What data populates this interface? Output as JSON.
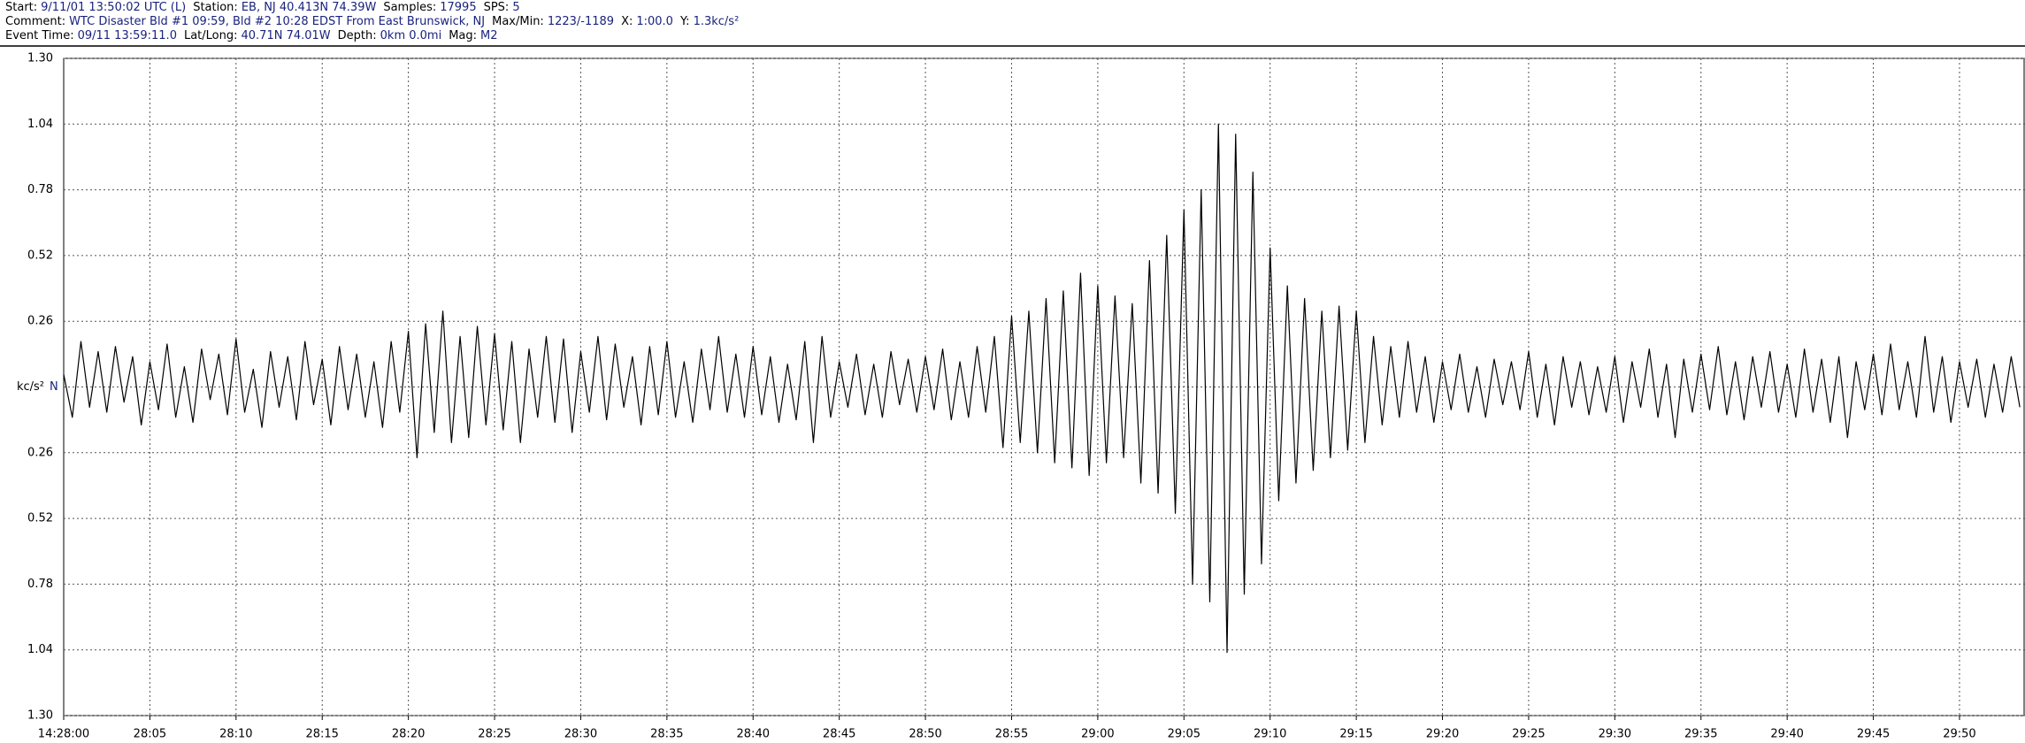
{
  "header": {
    "lines": [
      [
        {
          "label": "Start:",
          "value": "9/11/01 13:50:02 UTC (L)"
        },
        {
          "label": "Station:",
          "value": "EB, NJ 40.413N 74.39W"
        },
        {
          "label": "Samples:",
          "value": "17995"
        },
        {
          "label": "SPS:",
          "value": "5"
        }
      ],
      [
        {
          "label": "Comment:",
          "value": "WTC Disaster  Bld #1 09:59,  Bld #2 10:28  EDST From East Brunswick, NJ"
        },
        {
          "label": "Max/Min:",
          "value": "1223/-1189"
        },
        {
          "label": "X:",
          "value": "1:00.0"
        },
        {
          "label": "Y:",
          "value": "1.3kc/s²"
        }
      ],
      [
        {
          "label": "Event Time:",
          "value": "09/11 13:59:11.0"
        },
        {
          "label": "Lat/Long:",
          "value": "40.71N 74.01W"
        },
        {
          "label": "Depth:",
          "value": "0km 0.0mi"
        },
        {
          "label": "Mag:",
          "value": "M2"
        }
      ]
    ]
  },
  "chart_data": {
    "type": "line",
    "color": "#000000",
    "channel": "N",
    "grid": true,
    "xlim": [
      0,
      113.8
    ],
    "ylim": [
      -1.3,
      1.3
    ],
    "yticks": [
      {
        "value": 1.3,
        "label": "1.30"
      },
      1.04,
      0.78,
      0.52,
      0.26,
      {
        "value": 0,
        "label": "kc/s²"
      },
      {
        "value": -0.26,
        "label": "0.26"
      },
      {
        "value": -0.52,
        "label": "0.52"
      },
      {
        "value": -0.78,
        "label": "0.78"
      },
      {
        "value": -1.04,
        "label": "1.04"
      },
      {
        "value": -1.3,
        "label": "1.30"
      }
    ],
    "xticks": [
      {
        "value": 0,
        "label": "14:28:00"
      },
      {
        "value": 5,
        "label": "28:05"
      },
      {
        "value": 10,
        "label": "28:10"
      },
      {
        "value": 15,
        "label": "28:15"
      },
      {
        "value": 20,
        "label": "28:20"
      },
      {
        "value": 25,
        "label": "28:25"
      },
      {
        "value": 30,
        "label": "28:30"
      },
      {
        "value": 35,
        "label": "28:35"
      },
      {
        "value": 40,
        "label": "28:40"
      },
      {
        "value": 45,
        "label": "28:45"
      },
      {
        "value": 50,
        "label": "28:50"
      },
      {
        "value": 55,
        "label": "28:55"
      },
      {
        "value": 60,
        "label": "29:00"
      },
      {
        "value": 65,
        "label": "29:05"
      },
      {
        "value": 70,
        "label": "29:10"
      },
      {
        "value": 75,
        "label": "29:15"
      },
      {
        "value": 80,
        "label": "29:20"
      },
      {
        "value": 85,
        "label": "29:25"
      },
      {
        "value": 90,
        "label": "29:30"
      },
      {
        "value": 95,
        "label": "29:35"
      },
      {
        "value": 100,
        "label": "29:40"
      },
      {
        "value": 105,
        "label": "29:45"
      },
      {
        "value": 110,
        "label": "29:50"
      }
    ],
    "x": [
      0,
      0.5,
      1,
      1.5,
      2,
      2.5,
      3,
      3.5,
      4,
      4.5,
      5,
      5.5,
      6,
      6.5,
      7,
      7.5,
      8,
      8.5,
      9,
      9.5,
      10,
      10.5,
      11,
      11.5,
      12,
      12.5,
      13,
      13.5,
      14,
      14.5,
      15,
      15.5,
      16,
      16.5,
      17,
      17.5,
      18,
      18.5,
      19,
      19.5,
      20,
      20.5,
      21,
      21.5,
      22,
      22.5,
      23,
      23.5,
      24,
      24.5,
      25,
      25.5,
      26,
      26.5,
      27,
      27.5,
      28,
      28.5,
      29,
      29.5,
      30,
      30.5,
      31,
      31.5,
      32,
      32.5,
      33,
      33.5,
      34,
      34.5,
      35,
      35.5,
      36,
      36.5,
      37,
      37.5,
      38,
      38.5,
      39,
      39.5,
      40,
      40.5,
      41,
      41.5,
      42,
      42.5,
      43,
      43.5,
      44,
      44.5,
      45,
      45.5,
      46,
      46.5,
      47,
      47.5,
      48,
      48.5,
      49,
      49.5,
      50,
      50.5,
      51,
      51.5,
      52,
      52.5,
      53,
      53.5,
      54,
      54.5,
      55,
      55.5,
      56,
      56.5,
      57,
      57.5,
      58,
      58.5,
      59,
      59.5,
      60,
      60.5,
      61,
      61.5,
      62,
      62.5,
      63,
      63.5,
      64,
      64.5,
      65,
      65.5,
      66,
      66.5,
      67,
      67.5,
      68,
      68.5,
      69,
      69.5,
      70,
      70.5,
      71,
      71.5,
      72,
      72.5,
      73,
      73.5,
      74,
      74.5,
      75,
      75.5,
      76,
      76.5,
      77,
      77.5,
      78,
      78.5,
      79,
      79.5,
      80,
      80.5,
      81,
      81.5,
      82,
      82.5,
      83,
      83.5,
      84,
      84.5,
      85,
      85.5,
      86,
      86.5,
      87,
      87.5,
      88,
      88.5,
      89,
      89.5,
      90,
      90.5,
      91,
      91.5,
      92,
      92.5,
      93,
      93.5,
      94,
      94.5,
      95,
      95.5,
      96,
      96.5,
      97,
      97.5,
      98,
      98.5,
      99,
      99.5,
      100,
      100.5,
      101,
      101.5,
      102,
      102.5,
      103,
      103.5,
      104,
      104.5,
      105,
      105.5,
      106,
      106.5,
      107,
      107.5,
      108,
      108.5,
      109,
      109.5,
      110,
      110.5,
      111,
      111.5,
      112,
      112.5,
      113,
      113.5
    ],
    "values": [
      0.05,
      -0.12,
      0.18,
      -0.08,
      0.14,
      -0.1,
      0.16,
      -0.06,
      0.12,
      -0.15,
      0.1,
      -0.09,
      0.17,
      -0.12,
      0.08,
      -0.14,
      0.15,
      -0.05,
      0.13,
      -0.11,
      0.19,
      -0.1,
      0.07,
      -0.16,
      0.14,
      -0.08,
      0.12,
      -0.13,
      0.18,
      -0.07,
      0.11,
      -0.15,
      0.16,
      -0.09,
      0.13,
      -0.12,
      0.1,
      -0.16,
      0.18,
      -0.1,
      0.22,
      -0.28,
      0.25,
      -0.18,
      0.3,
      -0.22,
      0.2,
      -0.2,
      0.24,
      -0.15,
      0.21,
      -0.17,
      0.18,
      -0.22,
      0.15,
      -0.12,
      0.2,
      -0.14,
      0.19,
      -0.18,
      0.14,
      -0.1,
      0.2,
      -0.13,
      0.17,
      -0.08,
      0.12,
      -0.15,
      0.16,
      -0.11,
      0.18,
      -0.12,
      0.1,
      -0.14,
      0.15,
      -0.09,
      0.2,
      -0.1,
      0.13,
      -0.12,
      0.16,
      -0.11,
      0.12,
      -0.14,
      0.09,
      -0.13,
      0.18,
      -0.22,
      0.2,
      -0.12,
      0.1,
      -0.08,
      0.13,
      -0.11,
      0.09,
      -0.12,
      0.14,
      -0.07,
      0.11,
      -0.1,
      0.12,
      -0.09,
      0.15,
      -0.13,
      0.1,
      -0.12,
      0.16,
      -0.1,
      0.2,
      -0.24,
      0.28,
      -0.22,
      0.3,
      -0.26,
      0.35,
      -0.3,
      0.38,
      -0.32,
      0.45,
      -0.35,
      0.4,
      -0.3,
      0.36,
      -0.28,
      0.33,
      -0.38,
      0.5,
      -0.42,
      0.6,
      -0.5,
      0.7,
      -0.78,
      0.78,
      -0.85,
      1.04,
      -1.05,
      1.0,
      -0.82,
      0.85,
      -0.7,
      0.55,
      -0.45,
      0.4,
      -0.38,
      0.35,
      -0.33,
      0.3,
      -0.28,
      0.32,
      -0.25,
      0.3,
      -0.22,
      0.2,
      -0.15,
      0.16,
      -0.12,
      0.18,
      -0.1,
      0.12,
      -0.14,
      0.1,
      -0.09,
      0.13,
      -0.1,
      0.08,
      -0.12,
      0.11,
      -0.07,
      0.1,
      -0.09,
      0.14,
      -0.12,
      0.09,
      -0.15,
      0.12,
      -0.08,
      0.1,
      -0.11,
      0.08,
      -0.1,
      0.12,
      -0.14,
      0.1,
      -0.08,
      0.15,
      -0.12,
      0.09,
      -0.2,
      0.11,
      -0.1,
      0.13,
      -0.09,
      0.16,
      -0.11,
      0.1,
      -0.13,
      0.12,
      -0.08,
      0.14,
      -0.1,
      0.09,
      -0.12,
      0.15,
      -0.1,
      0.11,
      -0.14,
      0.12,
      -0.2,
      0.1,
      -0.09,
      0.13,
      -0.11,
      0.17,
      -0.09,
      0.1,
      -0.12,
      0.2,
      -0.1,
      0.12,
      -0.14,
      0.1,
      -0.08,
      0.11,
      -0.12,
      0.09,
      -0.1,
      0.12,
      -0.08
    ]
  }
}
